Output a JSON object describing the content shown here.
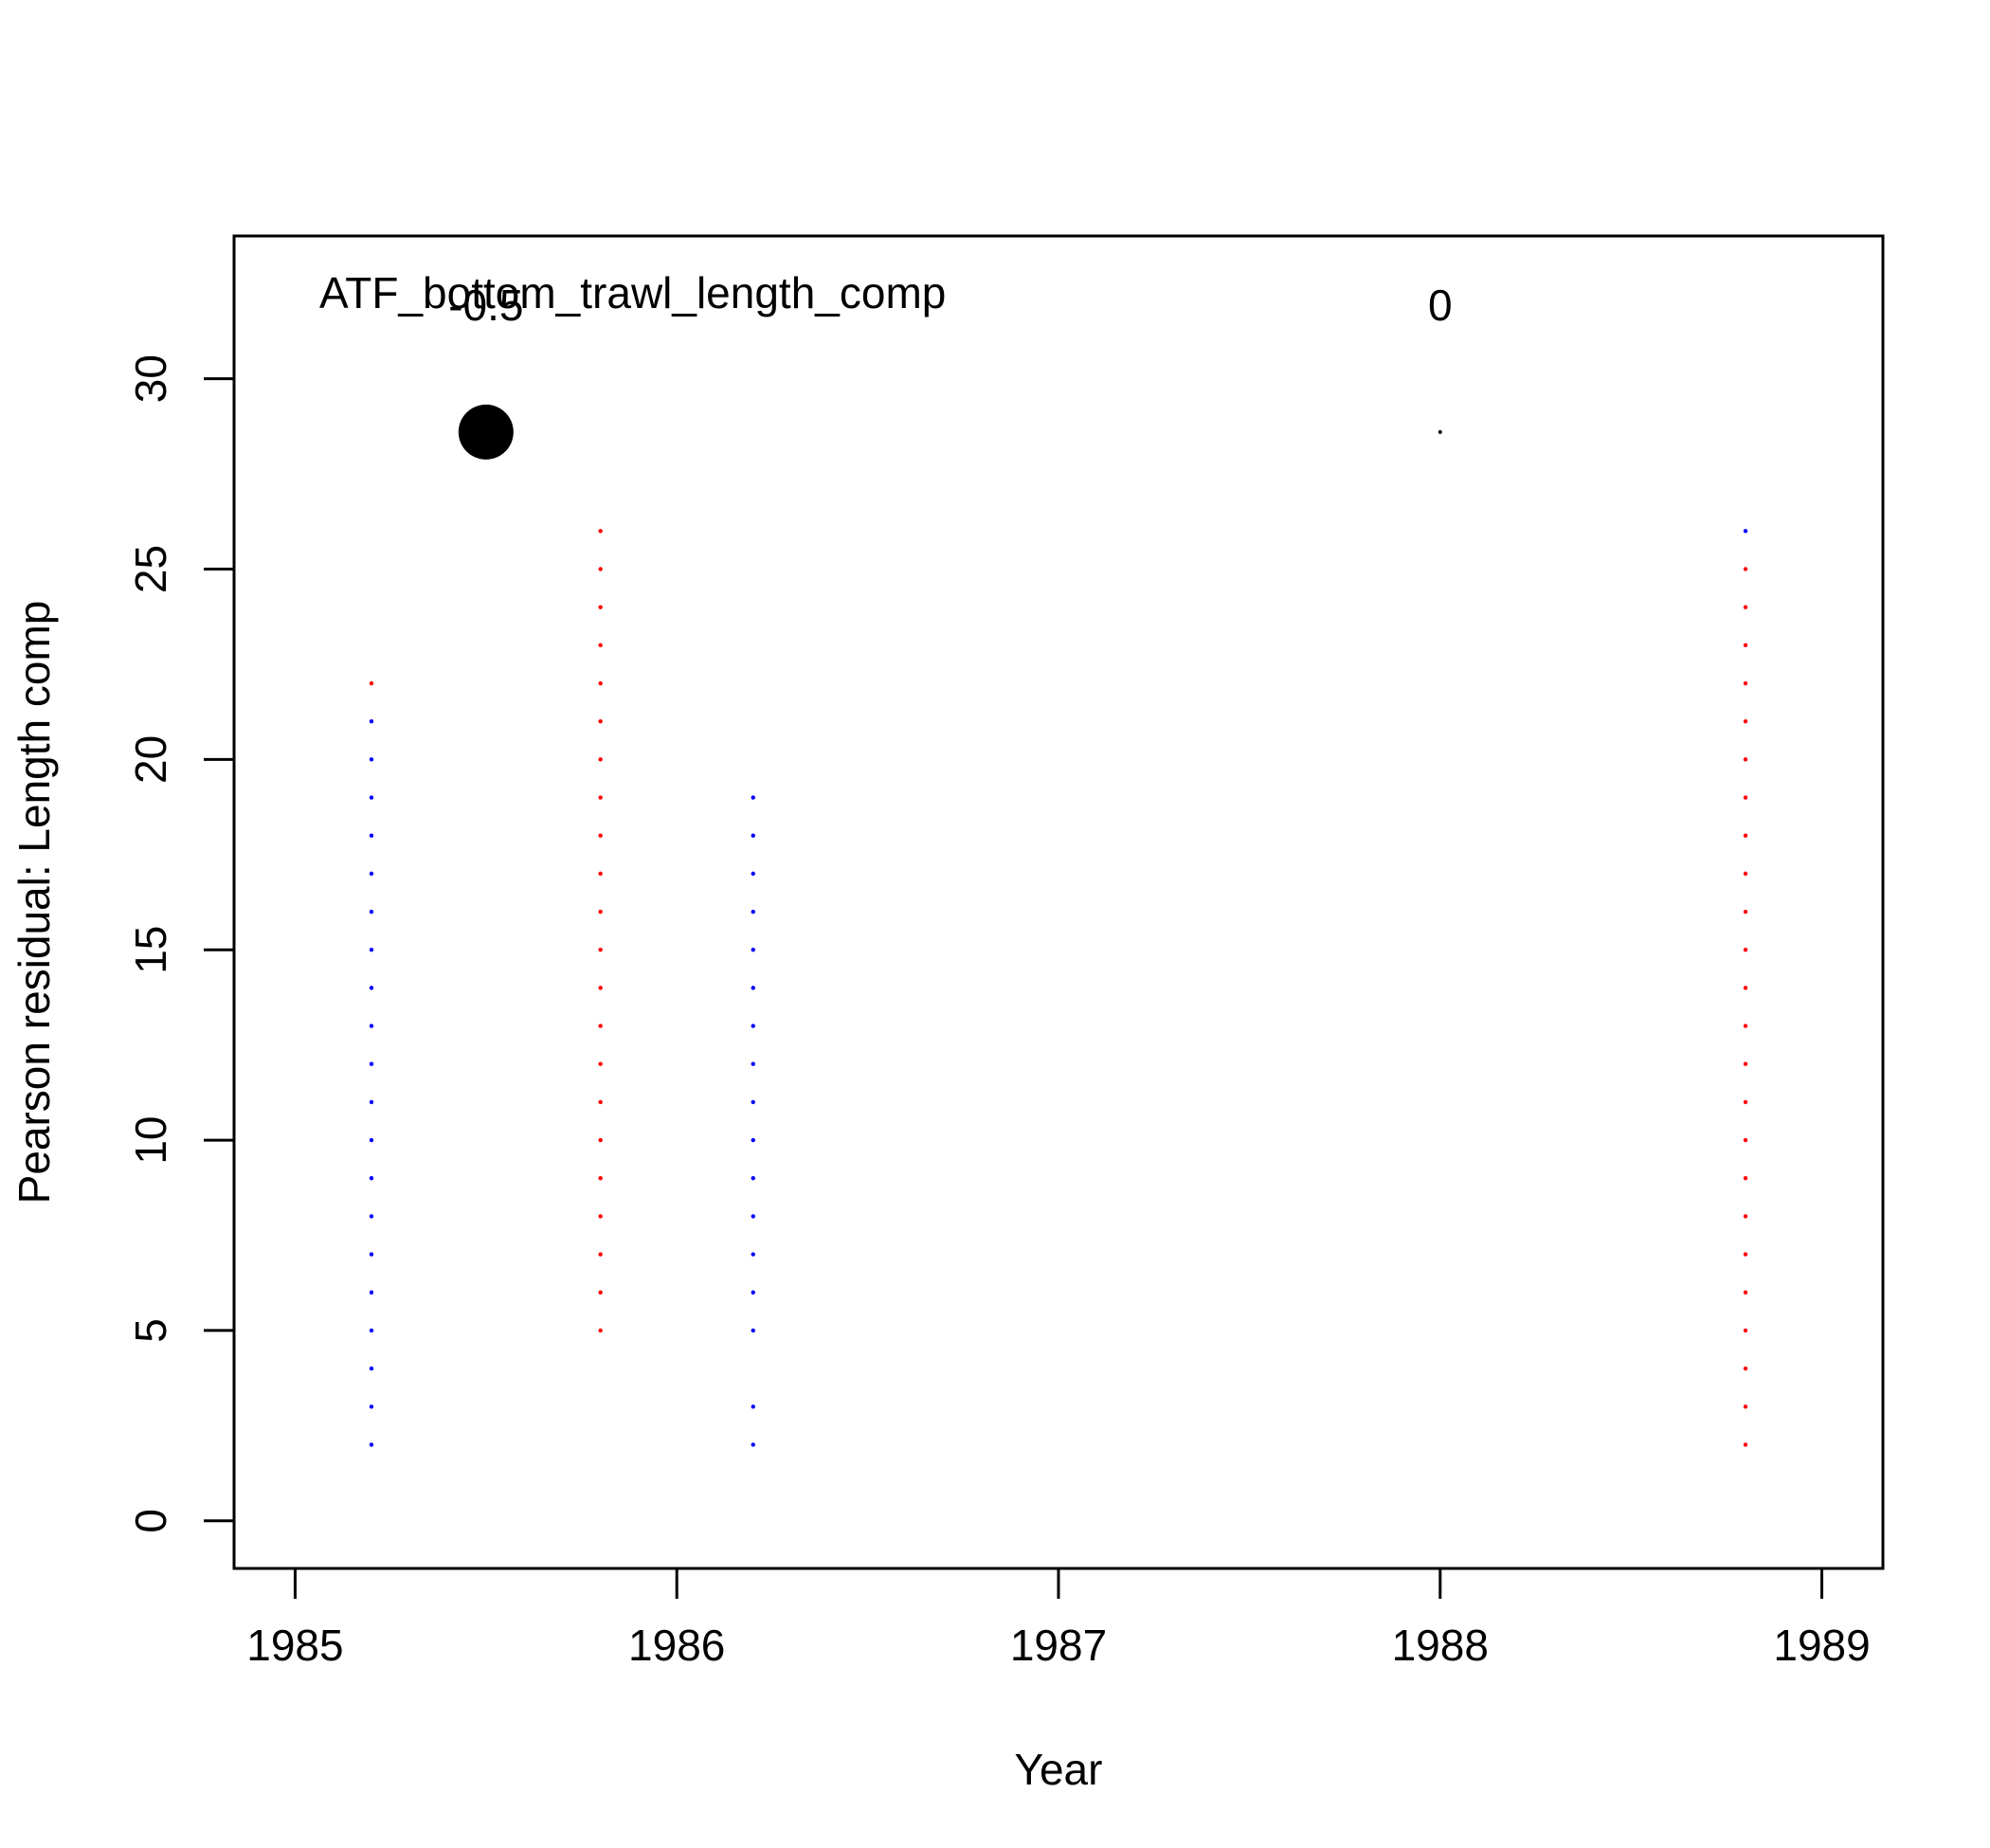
{
  "chart_data": {
    "type": "scatter",
    "title": "ATF_bottom_trawl_length_comp",
    "xlabel": "Year",
    "ylabel": "Pearson residual: Length comp",
    "xlim": [
      1984.84,
      1989.16
    ],
    "ylim": [
      -1.25,
      33.75
    ],
    "x_ticks": [
      1985,
      1986,
      1987,
      1988,
      1989
    ],
    "y_ticks": [
      0,
      5,
      10,
      15,
      20,
      25,
      30
    ],
    "legend": {
      "placement": "top",
      "entries": [
        {
          "label": "-0.5",
          "x": 1985.5,
          "y": 28.6,
          "size": 0.5
        },
        {
          "label": "0",
          "x": 1988.0,
          "y": 28.6,
          "size": 0.0
        }
      ]
    },
    "colors": {
      "positive": "#0000ff",
      "negative": "#ff0000",
      "legend": "#000000"
    },
    "series": [
      {
        "x": 1985.2,
        "y_from": 2,
        "y_to": 21,
        "step": 1,
        "sign": "positive",
        "skip": []
      },
      {
        "x": 1985.2,
        "y_from": 22,
        "y_to": 22,
        "step": 1,
        "sign": "negative",
        "skip": []
      },
      {
        "x": 1985.8,
        "y_from": 5,
        "y_to": 26,
        "step": 1,
        "sign": "negative",
        "skip": []
      },
      {
        "x": 1986.2,
        "y_from": 2,
        "y_to": 19,
        "step": 1,
        "sign": "positive",
        "skip": [
          4
        ]
      },
      {
        "x": 1988.8,
        "y_from": 2,
        "y_to": 25,
        "step": 1,
        "sign": "negative",
        "skip": []
      },
      {
        "x": 1988.8,
        "y_from": 26,
        "y_to": 26,
        "step": 1,
        "sign": "positive",
        "skip": []
      }
    ]
  }
}
